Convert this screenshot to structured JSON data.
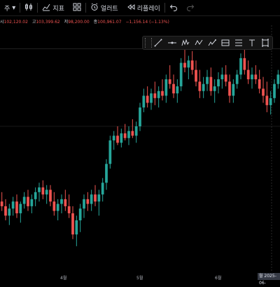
{
  "toolbar": {
    "interval_label": "주",
    "indicators_label": "지표",
    "alert_label": "얼러트",
    "replay_label": "리플레이",
    "icons": [
      "candle-type-icon",
      "indicators-icon",
      "layout-icon",
      "alert-icon",
      "replay-icon",
      "undo-icon",
      "redo-icon"
    ]
  },
  "ohlc": {
    "open_key": "시",
    "open_value": "102,120.02",
    "high_key": "고",
    "high_value": "103,399.62",
    "low_key": "저",
    "low_value": "98,200.00",
    "close_key": "종",
    "close_value": "100,961.07",
    "change": "−1,156.14 (−1.13%)",
    "down_color": "#ef5350",
    "up_color": "#26a69a"
  },
  "drawing_tools": [
    "trend-line-icon",
    "horizontal-line-icon",
    "pattern-icon",
    "wave-icon",
    "projection-icon",
    "range-icon",
    "brush-icon",
    "text-icon",
    "measure-icon"
  ],
  "xaxis": {
    "labels": [
      "4월",
      "5월",
      "6월"
    ],
    "cursor_label": "월 2025-06-"
  },
  "chart_data": {
    "type": "candlestick",
    "up_color": "#26a69a",
    "down_color": "#ef5350",
    "candles": [
      [
        0.28,
        0.32,
        0.24,
        0.26
      ],
      [
        0.26,
        0.29,
        0.2,
        0.22
      ],
      [
        0.22,
        0.27,
        0.18,
        0.25
      ],
      [
        0.25,
        0.3,
        0.22,
        0.28
      ],
      [
        0.28,
        0.31,
        0.21,
        0.23
      ],
      [
        0.23,
        0.28,
        0.19,
        0.27
      ],
      [
        0.27,
        0.32,
        0.25,
        0.3
      ],
      [
        0.3,
        0.33,
        0.24,
        0.26
      ],
      [
        0.26,
        0.31,
        0.23,
        0.29
      ],
      [
        0.29,
        0.34,
        0.26,
        0.32
      ],
      [
        0.32,
        0.36,
        0.28,
        0.34
      ],
      [
        0.34,
        0.37,
        0.29,
        0.31
      ],
      [
        0.31,
        0.35,
        0.27,
        0.33
      ],
      [
        0.33,
        0.35,
        0.26,
        0.28
      ],
      [
        0.28,
        0.32,
        0.22,
        0.24
      ],
      [
        0.24,
        0.29,
        0.2,
        0.27
      ],
      [
        0.27,
        0.31,
        0.23,
        0.29
      ],
      [
        0.29,
        0.33,
        0.24,
        0.26
      ],
      [
        0.26,
        0.31,
        0.21,
        0.23
      ],
      [
        0.23,
        0.26,
        0.12,
        0.14
      ],
      [
        0.14,
        0.22,
        0.09,
        0.2
      ],
      [
        0.2,
        0.27,
        0.15,
        0.25
      ],
      [
        0.25,
        0.31,
        0.21,
        0.29
      ],
      [
        0.29,
        0.32,
        0.24,
        0.27
      ],
      [
        0.27,
        0.33,
        0.24,
        0.31
      ],
      [
        0.31,
        0.35,
        0.26,
        0.28
      ],
      [
        0.28,
        0.33,
        0.22,
        0.31
      ],
      [
        0.31,
        0.38,
        0.28,
        0.36
      ],
      [
        0.36,
        0.46,
        0.33,
        0.44
      ],
      [
        0.44,
        0.56,
        0.42,
        0.54
      ],
      [
        0.54,
        0.58,
        0.5,
        0.56
      ],
      [
        0.56,
        0.6,
        0.52,
        0.53
      ],
      [
        0.53,
        0.59,
        0.51,
        0.57
      ],
      [
        0.57,
        0.61,
        0.54,
        0.55
      ],
      [
        0.55,
        0.6,
        0.52,
        0.58
      ],
      [
        0.58,
        0.63,
        0.55,
        0.56
      ],
      [
        0.56,
        0.62,
        0.53,
        0.6
      ],
      [
        0.6,
        0.7,
        0.58,
        0.68
      ],
      [
        0.68,
        0.76,
        0.66,
        0.73
      ],
      [
        0.73,
        0.77,
        0.68,
        0.7
      ],
      [
        0.7,
        0.76,
        0.67,
        0.74
      ],
      [
        0.74,
        0.79,
        0.69,
        0.72
      ],
      [
        0.72,
        0.77,
        0.68,
        0.75
      ],
      [
        0.75,
        0.8,
        0.71,
        0.73
      ],
      [
        0.73,
        0.82,
        0.7,
        0.8
      ],
      [
        0.8,
        0.86,
        0.76,
        0.78
      ],
      [
        0.78,
        0.82,
        0.72,
        0.74
      ],
      [
        0.74,
        0.8,
        0.7,
        0.77
      ],
      [
        0.77,
        0.89,
        0.75,
        0.87
      ],
      [
        0.87,
        0.93,
        0.83,
        0.85
      ],
      [
        0.85,
        0.9,
        0.8,
        0.88
      ],
      [
        0.88,
        0.92,
        0.82,
        0.84
      ],
      [
        0.84,
        0.88,
        0.77,
        0.79
      ],
      [
        0.79,
        0.84,
        0.72,
        0.75
      ],
      [
        0.75,
        0.81,
        0.72,
        0.78
      ],
      [
        0.78,
        0.84,
        0.75,
        0.81
      ],
      [
        0.81,
        0.85,
        0.73,
        0.75
      ],
      [
        0.75,
        0.8,
        0.7,
        0.77
      ],
      [
        0.77,
        0.83,
        0.74,
        0.8
      ],
      [
        0.8,
        0.85,
        0.76,
        0.82
      ],
      [
        0.82,
        0.86,
        0.77,
        0.79
      ],
      [
        0.79,
        0.82,
        0.7,
        0.73
      ],
      [
        0.73,
        0.8,
        0.7,
        0.78
      ],
      [
        0.78,
        0.84,
        0.76,
        0.82
      ],
      [
        0.82,
        0.91,
        0.8,
        0.89
      ],
      [
        0.89,
        0.93,
        0.82,
        0.84
      ],
      [
        0.84,
        0.88,
        0.78,
        0.8
      ],
      [
        0.8,
        0.85,
        0.76,
        0.82
      ],
      [
        0.82,
        0.86,
        0.78,
        0.8
      ],
      [
        0.8,
        0.84,
        0.74,
        0.76
      ],
      [
        0.76,
        0.81,
        0.7,
        0.73
      ],
      [
        0.73,
        0.79,
        0.66,
        0.69
      ],
      [
        0.69,
        0.75,
        0.65,
        0.72
      ],
      [
        0.72,
        0.8,
        0.7,
        0.78
      ],
      [
        0.78,
        0.84,
        0.76,
        0.82
      ]
    ],
    "crosshair": {
      "horizontal_levels": [
        0.93,
        0.6
      ]
    }
  }
}
